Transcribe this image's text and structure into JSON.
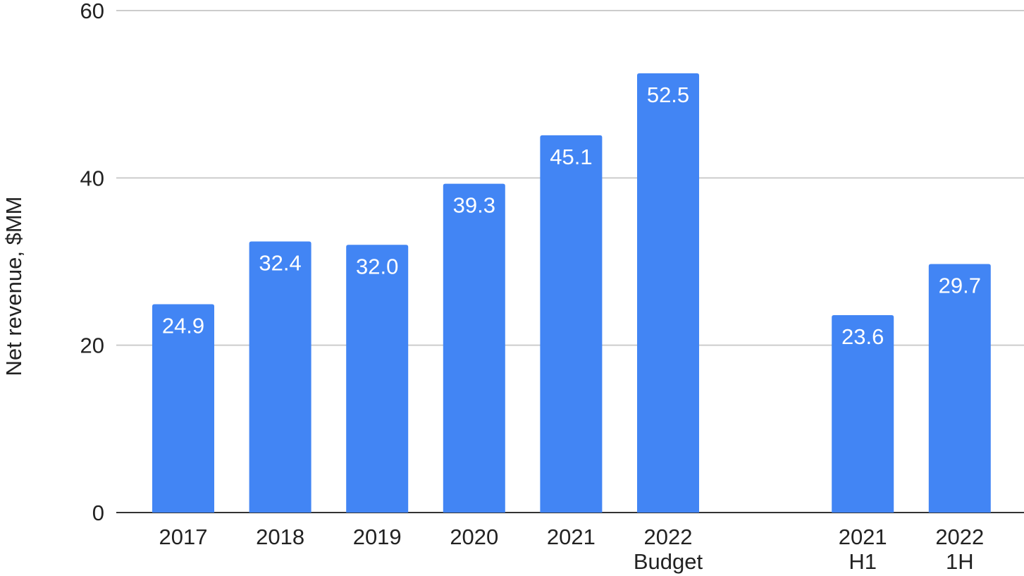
{
  "chart_data": {
    "type": "bar",
    "title": "",
    "xlabel": "",
    "ylabel": "Net revenue, $MM",
    "ylim": [
      0,
      60
    ],
    "yticks": [
      "0",
      "20",
      "40",
      "60"
    ],
    "grid": true,
    "legend": "none",
    "bar_color": "#4285f4",
    "categories": [
      [
        "2017"
      ],
      [
        "2018"
      ],
      [
        "2019"
      ],
      [
        "2020"
      ],
      [
        "2021"
      ],
      [
        "2022",
        "Budget"
      ],
      [
        "2021",
        "H1"
      ],
      [
        "2022",
        "1H"
      ]
    ],
    "values": [
      24.9,
      32.4,
      32.0,
      39.3,
      45.1,
      52.5,
      23.6,
      29.7
    ],
    "data_labels": [
      "24.9",
      "32.4",
      "32.0",
      "39.3",
      "45.1",
      "52.5",
      "23.6",
      "29.7"
    ],
    "groups": [
      {
        "start": 0,
        "count": 6
      },
      {
        "start": 6,
        "count": 2
      }
    ]
  }
}
